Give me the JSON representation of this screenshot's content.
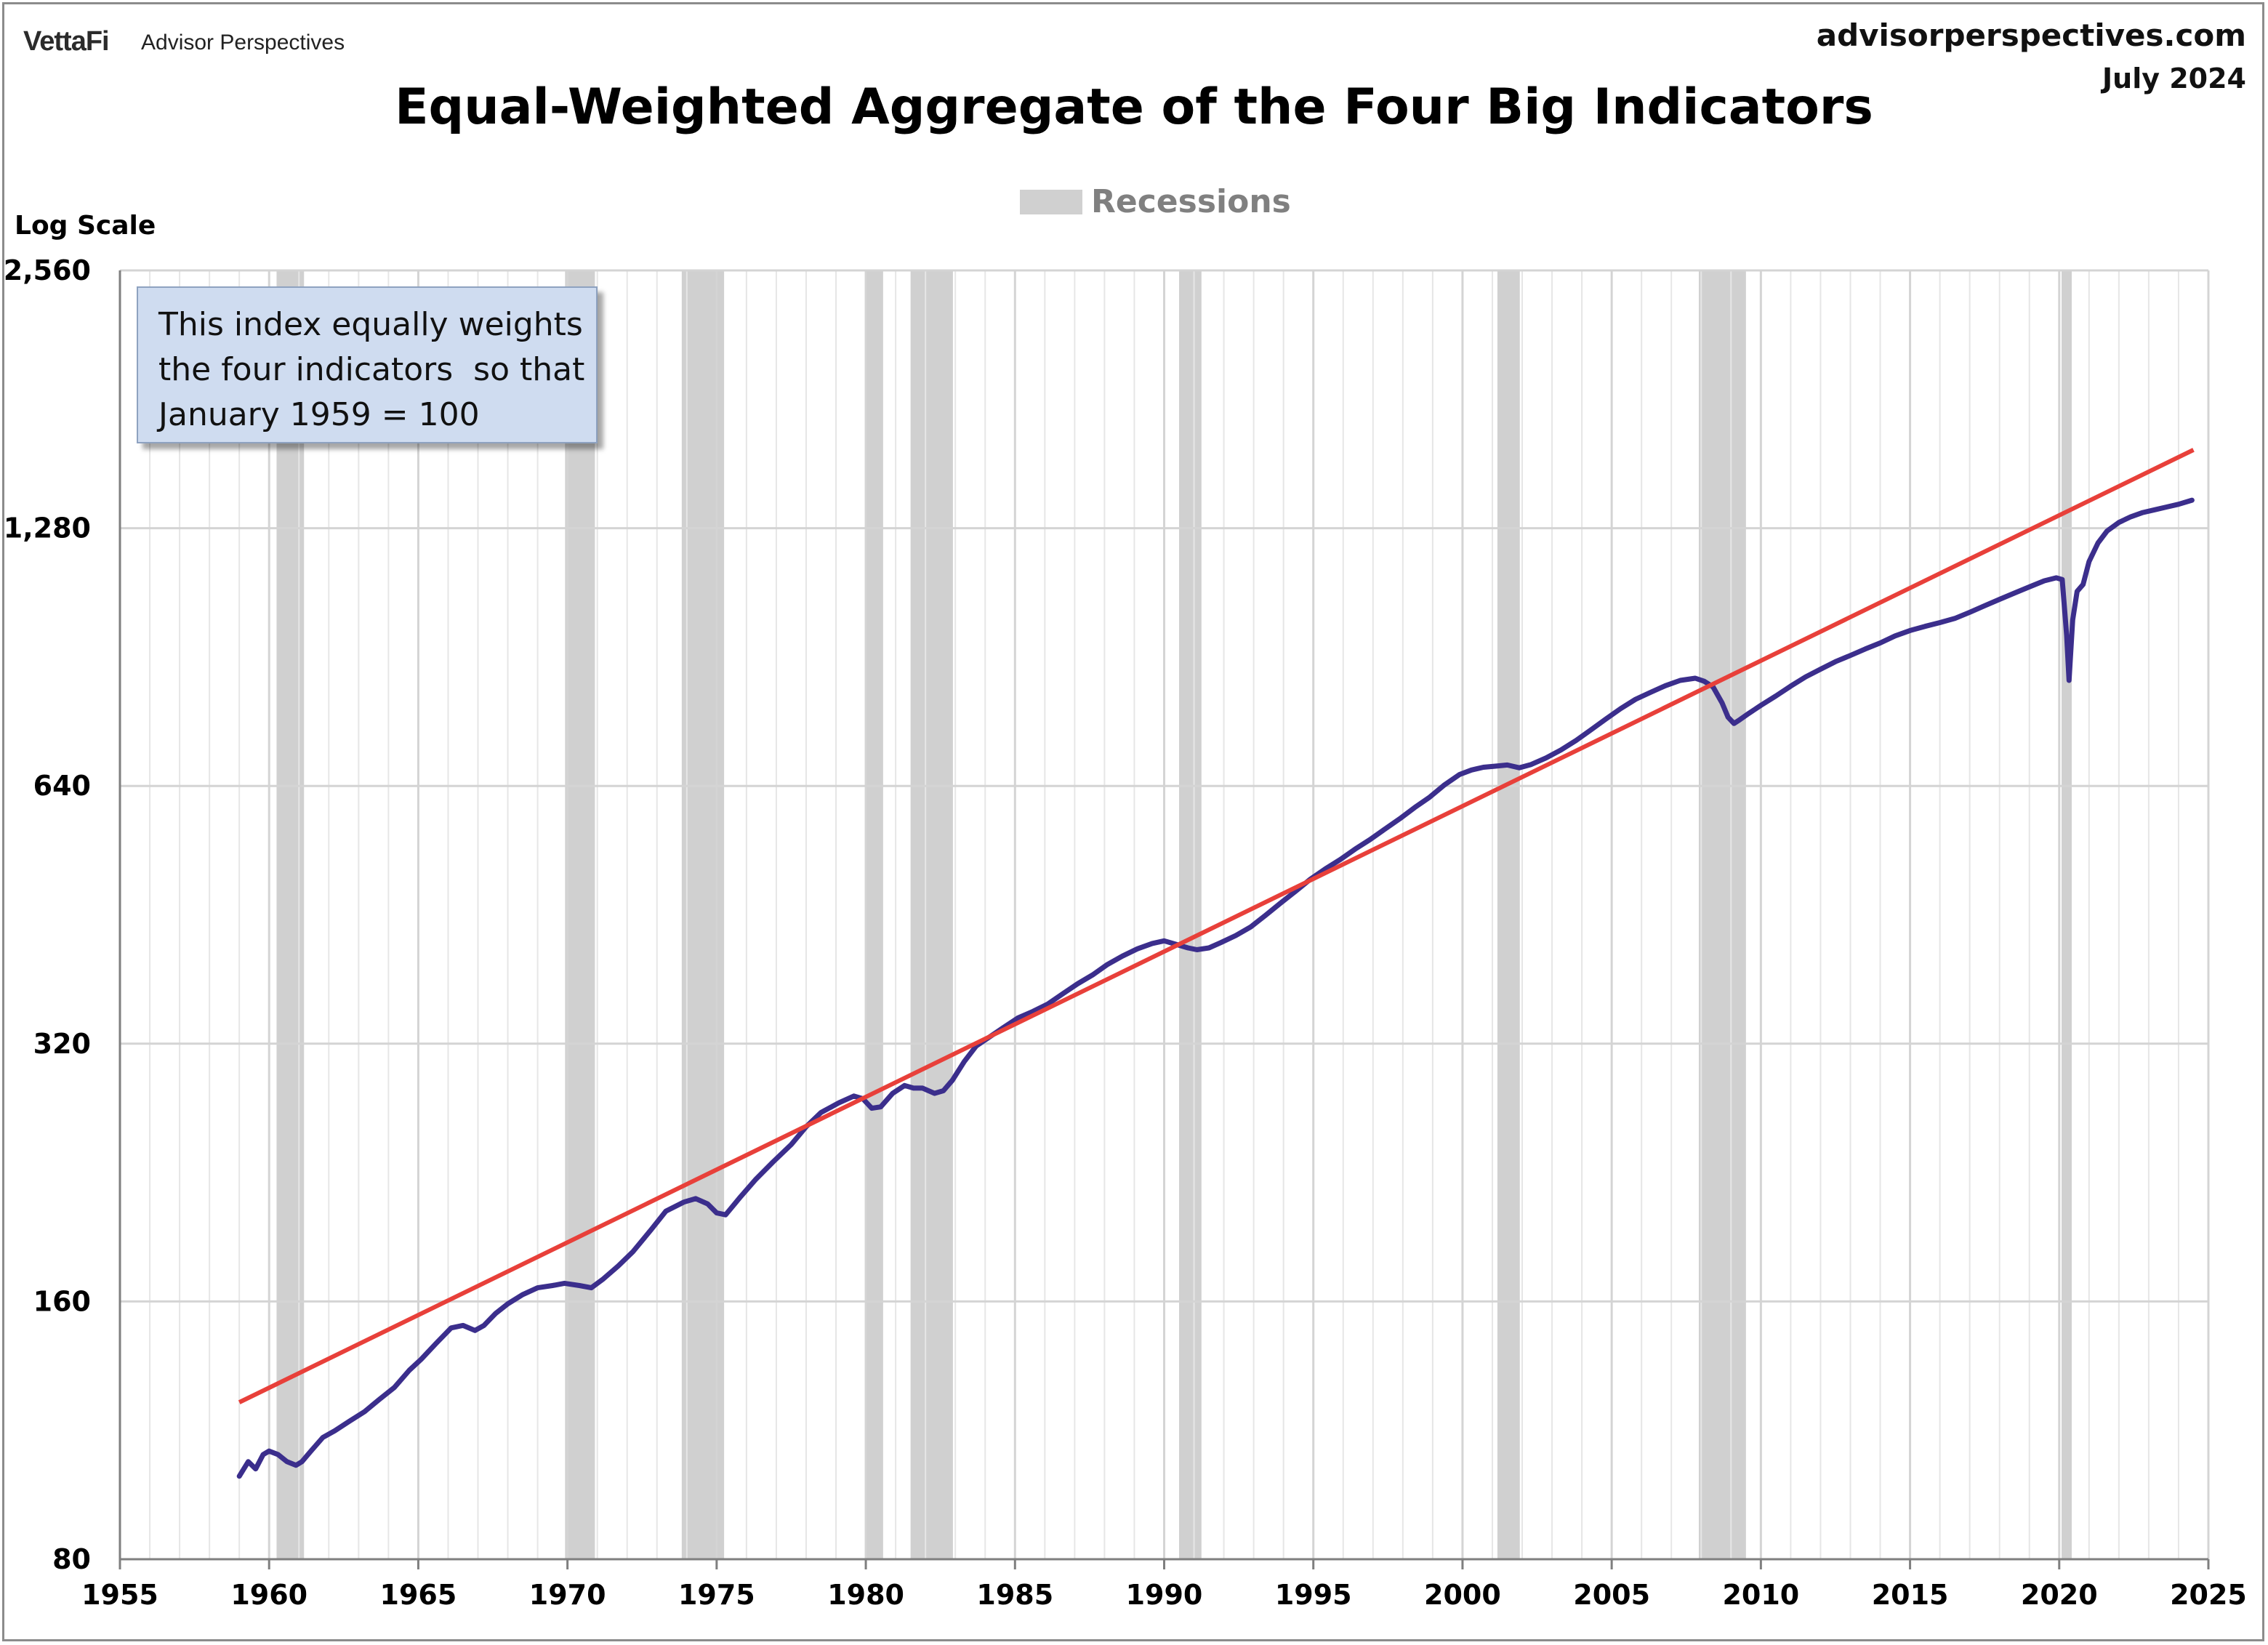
{
  "header": {
    "brand": "VettaFi",
    "brand_sub": "Advisor Perspectives",
    "site": "advisorperspectives.com",
    "date": "July 2024"
  },
  "chart_data": {
    "type": "line",
    "title": "Equal-Weighted Aggregate of the Four Big Indicators",
    "ylabel": "Log Scale",
    "xlabel": "",
    "y_scale": "log2",
    "ylim": [
      80,
      2560
    ],
    "xlim": [
      1955,
      2025
    ],
    "y_ticks": [
      80,
      160,
      320,
      640,
      1280,
      2560
    ],
    "y_tick_labels": [
      "80",
      "160",
      "320",
      "640",
      "1,280",
      "2,560"
    ],
    "x_ticks": [
      1955,
      1960,
      1965,
      1970,
      1975,
      1980,
      1985,
      1990,
      1995,
      2000,
      2005,
      2010,
      2015,
      2020,
      2025
    ],
    "grid": true,
    "legend": {
      "placement": "top-center",
      "entries": [
        "Recessions"
      ]
    },
    "annotation": [
      "This index equally weights",
      "the four indicators  so that",
      "January 1959 = 100"
    ],
    "recessions": [
      [
        1960.25,
        1961.17
      ],
      [
        1969.92,
        1970.92
      ],
      [
        1973.83,
        1975.25
      ],
      [
        1980.0,
        1980.58
      ],
      [
        1981.5,
        1982.92
      ],
      [
        1990.5,
        1991.25
      ],
      [
        2001.17,
        2001.92
      ],
      [
        2007.92,
        2009.5
      ],
      [
        2020.08,
        2020.42
      ]
    ],
    "series": [
      {
        "values_x": [
          1959.0,
          1959.3,
          1959.55,
          1959.8,
          1960.0,
          1960.3,
          1960.6,
          1960.9,
          1961.1,
          1961.4,
          1961.8,
          1962.2,
          1962.7,
          1963.2,
          1963.7,
          1964.2,
          1964.7,
          1965.1,
          1965.6,
          1966.1,
          1966.5,
          1966.9,
          1967.2,
          1967.6,
          1968.0,
          1968.5,
          1969.0,
          1969.5,
          1969.9,
          1970.4,
          1970.8,
          1971.2,
          1971.7,
          1972.2,
          1972.8,
          1973.3,
          1973.9,
          1974.3,
          1974.7,
          1975.0,
          1975.3,
          1975.8,
          1976.3,
          1976.9,
          1977.5,
          1978.0,
          1978.5,
          1979.1,
          1979.6,
          1979.9,
          1980.2,
          1980.5,
          1980.9,
          1981.3,
          1981.6,
          1981.9,
          1982.3,
          1982.6,
          1982.9,
          1983.3,
          1983.7,
          1984.1,
          1984.6,
          1985.1,
          1985.6,
          1986.1,
          1986.6,
          1987.1,
          1987.6,
          1988.1,
          1988.6,
          1989.1,
          1989.6,
          1990.0,
          1990.4,
          1990.8,
          1991.1,
          1991.5,
          1991.9,
          1992.4,
          1992.9,
          1993.4,
          1993.9,
          1994.4,
          1994.9,
          1995.4,
          1995.9,
          1996.4,
          1996.9,
          1997.4,
          1997.9,
          1998.4,
          1998.9,
          1999.4,
          1999.9,
          2000.3,
          2000.7,
          2001.1,
          2001.5,
          2001.9,
          2002.3,
          2002.8,
          2003.3,
          2003.8,
          2004.3,
          2004.8,
          2005.3,
          2005.8,
          2006.3,
          2006.8,
          2007.3,
          2007.8,
          2008.1,
          2008.4,
          2008.7,
          2008.9,
          2009.1,
          2009.3,
          2009.6,
          2010.0,
          2010.5,
          2011.0,
          2011.5,
          2012.0,
          2012.5,
          2013.0,
          2013.5,
          2014.0,
          2014.5,
          2015.0,
          2015.5,
          2016.0,
          2016.5,
          2017.0,
          2017.5,
          2018.0,
          2018.5,
          2019.0,
          2019.5,
          2019.9,
          2020.1,
          2020.25,
          2020.33,
          2020.45,
          2020.6,
          2020.8,
          2021.0,
          2021.3,
          2021.6,
          2022.0,
          2022.4,
          2022.8,
          2023.2,
          2023.6,
          2024.0,
          2024.45
        ],
        "values": [
          100,
          104,
          102,
          106,
          107,
          106,
          104,
          103,
          104,
          107,
          111,
          113,
          116,
          119,
          123,
          127,
          133,
          137,
          143,
          149,
          150,
          148,
          150,
          155,
          159,
          163,
          166,
          167,
          168,
          167,
          166,
          170,
          176,
          183,
          194,
          204,
          209,
          211,
          208,
          203,
          202,
          212,
          222,
          233,
          244,
          256,
          266,
          273,
          278,
          276,
          269,
          270,
          280,
          286,
          284,
          284,
          280,
          282,
          290,
          305,
          318,
          325,
          334,
          343,
          349,
          356,
          366,
          376,
          385,
          396,
          405,
          413,
          419,
          422,
          418,
          414,
          412,
          414,
          420,
          428,
          438,
          452,
          467,
          482,
          498,
          512,
          525,
          540,
          554,
          570,
          586,
          604,
          621,
          642,
          660,
          668,
          673,
          675,
          677,
          672,
          678,
          690,
          705,
          723,
          744,
          766,
          788,
          808,
          823,
          838,
          850,
          855,
          848,
          835,
          800,
          770,
          757,
          765,
          778,
          795,
          815,
          837,
          858,
          876,
          894,
          909,
          925,
          940,
          958,
          972,
          983,
          993,
          1004,
          1021,
          1039,
          1057,
          1075,
          1093,
          1111,
          1120,
          1115,
          960,
          850,
          1000,
          1080,
          1100,
          1170,
          1230,
          1270,
          1300,
          1320,
          1335,
          1345,
          1355,
          1365,
          1380
        ]
      },
      {
        "values_x": [
          1959.0,
          2024.5
        ],
        "values": [
          122,
          1580
        ]
      }
    ]
  },
  "colors": {
    "series_line": "#3b2e8c",
    "trend_line": "#e8403a",
    "recession": "#d0d0d0",
    "note_bg": "#cfdcf0"
  }
}
